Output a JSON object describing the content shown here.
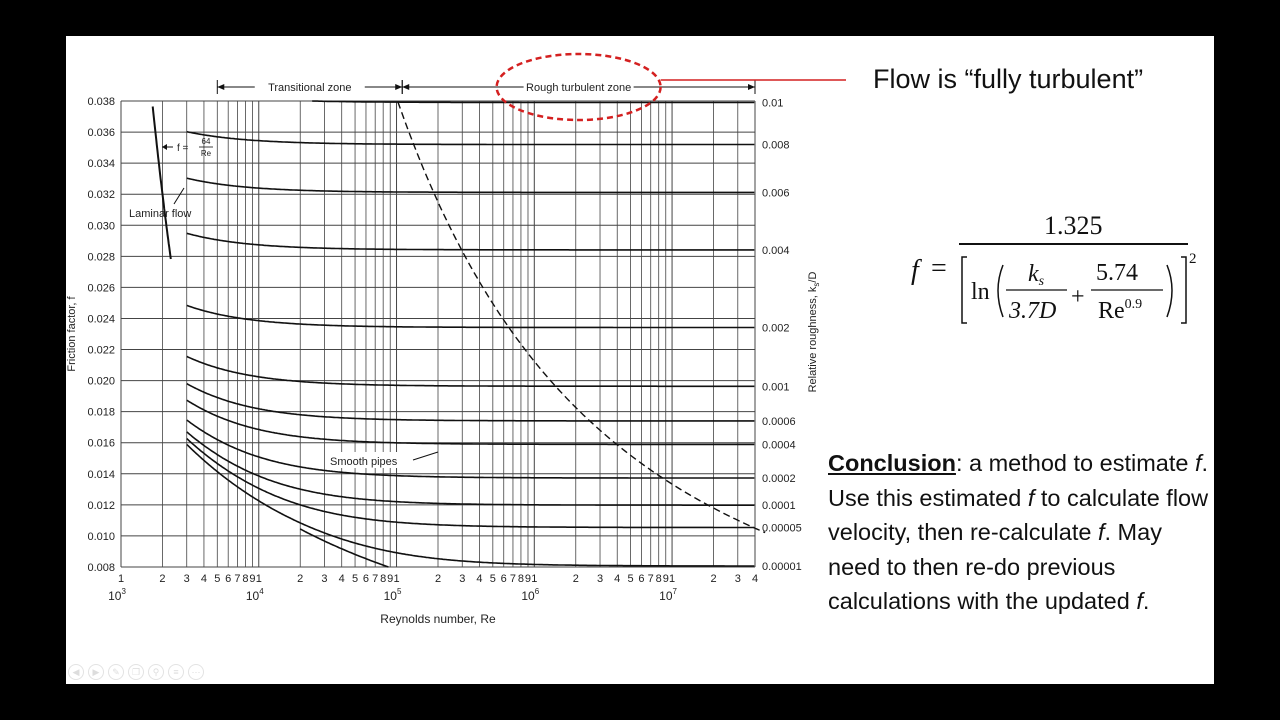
{
  "slide": {
    "headline": "Flow is “fully turbulent”",
    "formula": {
      "lhs": "f",
      "numerator": "1.325",
      "ln": "ln",
      "ks": "k",
      "ks_sub": "s",
      "ks_den": "3.7D",
      "num2": "5.74",
      "re": "Re",
      "re_exp": "0.9",
      "power": "2"
    },
    "conclusion": {
      "label": "Conclusion",
      "text1": ": a method to estimate ",
      "f1": "f",
      "text2": ".  Use this estimated ",
      "f2": "f",
      "text3": " to calculate flow velocity, then re-calculate ",
      "f3": "f",
      "text4": ". May need to then re-do previous calculations with the updated ",
      "f4": "f",
      "text5": "."
    },
    "nav_icons": [
      "prev-icon",
      "next-icon",
      "pen-icon",
      "copy-icon",
      "zoom-icon",
      "menu-icon",
      "more-icon"
    ]
  },
  "chart_data": {
    "type": "line",
    "ylabel": "Friction factor, f",
    "xlabel": "Reynolds number, Re",
    "right_label": "Relative roughness, k",
    "right_label_sub": "s",
    "right_label_tail": "/D",
    "x_scale": "log",
    "xlim": [
      1000,
      40000000
    ],
    "ylim": [
      0.008,
      0.038
    ],
    "grid": true,
    "y_ticks": [
      "0.038",
      "0.036",
      "0.034",
      "0.032",
      "0.030",
      "0.028",
      "0.026",
      "0.024",
      "0.022",
      "0.020",
      "0.018",
      "0.016",
      "0.014",
      "0.012",
      "0.010",
      "0.008"
    ],
    "x_minor_labels": [
      "1",
      "2",
      "3",
      "4",
      "5",
      "6",
      "7",
      "8",
      "9"
    ],
    "x_decades": [
      {
        "base": "10",
        "exp": "3"
      },
      {
        "base": "10",
        "exp": "4"
      },
      {
        "base": "10",
        "exp": "5"
      },
      {
        "base": "10",
        "exp": "6"
      },
      {
        "base": "10",
        "exp": "7"
      }
    ],
    "zones": {
      "transitional": "Transitional zone",
      "rough": "Rough turbulent zone"
    },
    "annotations": {
      "laminar": "Laminar flow",
      "laminar_eq_lhs": "f =",
      "laminar_eq_num": "64",
      "laminar_eq_den": "Re",
      "smooth": "Smooth pipes"
    },
    "series": [
      {
        "label": "0.01",
        "ks_D": 0.01
      },
      {
        "label": "0.008",
        "ks_D": 0.008
      },
      {
        "label": "0.006",
        "ks_D": 0.006
      },
      {
        "label": "0.004",
        "ks_D": 0.004
      },
      {
        "label": "0.002",
        "ks_D": 0.002
      },
      {
        "label": "0.001",
        "ks_D": 0.001
      },
      {
        "label": "0.0006",
        "ks_D": 0.0006
      },
      {
        "label": "0.0004",
        "ks_D": 0.0004
      },
      {
        "label": "0.0002",
        "ks_D": 0.0002
      },
      {
        "label": "0.0001",
        "ks_D": 0.0001
      },
      {
        "label": "0.00005",
        "ks_D": 5e-05
      },
      {
        "label": "0.00001",
        "ks_D": 1e-05
      },
      {
        "label": "",
        "ks_D": 0
      }
    ],
    "laminar": {
      "x": [
        1000,
        2300
      ]
    },
    "smooth_pipe_start_re": 20000,
    "boundary_style": "dashed",
    "highlight": {
      "shape": "ellipse",
      "color": "#d42020",
      "target": "rough"
    },
    "colors": {
      "curve": "#111111",
      "grid": "#444444",
      "highlight": "#d42020"
    }
  }
}
